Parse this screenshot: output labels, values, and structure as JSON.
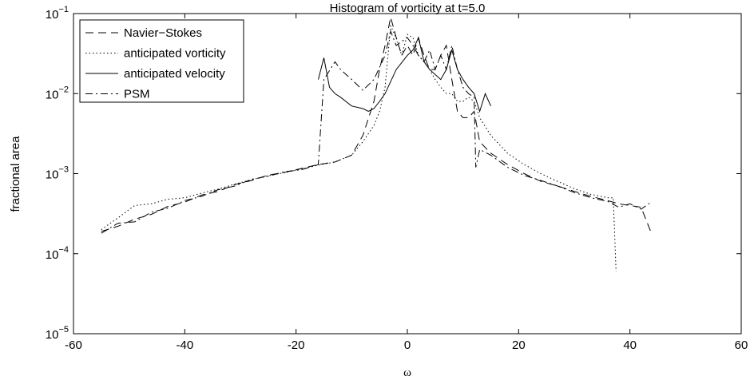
{
  "chart_data": {
    "type": "line",
    "title": "Histogram of vorticity at t=5.0",
    "x_label": "ω",
    "y_label": "fractional area",
    "y_scale": "log",
    "xlim": [
      -60,
      60
    ],
    "ylim": [
      1e-05,
      0.1
    ],
    "xticks": [
      -60,
      -40,
      -20,
      0,
      20,
      40,
      60
    ],
    "yticks": [
      {
        "value": 1e-05,
        "label": "10−5"
      },
      {
        "value": 0.0001,
        "label": "10−4"
      },
      {
        "value": 0.001,
        "label": "10−3"
      },
      {
        "value": 0.01,
        "label": "10−2"
      },
      {
        "value": 0.1,
        "label": "10−1"
      }
    ],
    "legend": "upper left",
    "series": [
      {
        "name": "Navier−Stokes",
        "color": "#000000",
        "linestyle": "dashed",
        "x": [
          -55,
          -52,
          -49,
          -46,
          -43,
          -40,
          -37,
          -34,
          -31,
          -28,
          -25,
          -22,
          -19,
          -16,
          -13,
          -10,
          -8,
          -6,
          -5,
          -4,
          -3,
          -2,
          -1,
          0,
          1,
          2,
          3,
          4,
          5,
          6,
          7,
          8,
          9,
          10,
          11,
          12,
          13,
          15,
          18,
          21,
          24,
          27,
          30,
          33,
          36,
          38,
          40,
          42,
          44
        ],
        "values": [
          0.00019,
          0.00022,
          0.00027,
          0.00031,
          0.00039,
          0.00044,
          0.00054,
          0.0006,
          0.00073,
          0.00082,
          0.00096,
          0.00104,
          0.00116,
          0.0013,
          0.0014,
          0.0017,
          0.003,
          0.008,
          0.02,
          0.04,
          0.09,
          0.05,
          0.03,
          0.04,
          0.03,
          0.05,
          0.03,
          0.02,
          0.02,
          0.03,
          0.04,
          0.015,
          0.006,
          0.005,
          0.005,
          0.006,
          0.0025,
          0.0018,
          0.0013,
          0.001,
          0.0008,
          0.0007,
          0.0006,
          0.00052,
          0.00046,
          0.00042,
          0.0004,
          0.00038,
          0.00017
        ]
      },
      {
        "name": "anticipated vorticity",
        "color": "#000000",
        "linestyle": "dotted",
        "x": [
          -55,
          -52,
          -49,
          -46,
          -43,
          -40,
          -37,
          -34,
          -31,
          -28,
          -25,
          -22,
          -19,
          -16,
          -13,
          -10,
          -8,
          -6,
          -5,
          -4,
          -3,
          -2,
          -1,
          0,
          1,
          2,
          3,
          4,
          5,
          6,
          7,
          8,
          9,
          10,
          11,
          12,
          13,
          15,
          18,
          21,
          24,
          27,
          30,
          33,
          36,
          37,
          37.5
        ],
        "values": [
          0.0002,
          0.00028,
          0.0004,
          0.00042,
          0.00048,
          0.0005,
          0.00057,
          0.00064,
          0.00074,
          0.00084,
          0.00094,
          0.00103,
          0.00114,
          0.00128,
          0.0014,
          0.0017,
          0.0025,
          0.004,
          0.006,
          0.012,
          0.07,
          0.05,
          0.03,
          0.055,
          0.05,
          0.03,
          0.025,
          0.02,
          0.015,
          0.012,
          0.01,
          0.01,
          0.008,
          0.008,
          0.009,
          0.008,
          0.005,
          0.003,
          0.0018,
          0.0013,
          0.001,
          0.0008,
          0.00065,
          0.00055,
          0.0005,
          0.0005,
          6e-05
        ]
      },
      {
        "name": "anticipated velocity",
        "color": "#000000",
        "linestyle": "solid",
        "x": [
          -16,
          -15,
          -14,
          -13,
          -12,
          -10,
          -8,
          -7,
          -6,
          -5,
          -4,
          -2,
          0,
          1,
          2,
          3,
          4,
          6,
          7,
          8,
          9,
          10,
          11,
          12,
          13,
          14,
          15
        ],
        "values": [
          0.015,
          0.028,
          0.012,
          0.01,
          0.009,
          0.007,
          0.0065,
          0.006,
          0.0065,
          0.008,
          0.01,
          0.02,
          0.03,
          0.035,
          0.05,
          0.025,
          0.02,
          0.015,
          0.02,
          0.035,
          0.02,
          0.015,
          0.012,
          0.01,
          0.006,
          0.01,
          0.007
        ]
      },
      {
        "name": "PSM",
        "color": "#000000",
        "linestyle": "dashdot",
        "x": [
          -55,
          -52,
          -49,
          -46,
          -43,
          -40,
          -37,
          -34,
          -31,
          -28,
          -25,
          -22,
          -19,
          -16,
          -15,
          -13,
          -12,
          -10,
          -8,
          -6,
          -4,
          -3,
          -2,
          -1,
          0,
          1,
          2,
          3,
          4,
          5,
          6,
          7,
          8,
          9,
          10,
          11,
          12,
          12.3,
          13,
          15,
          18,
          21,
          24,
          27,
          30,
          33,
          36,
          38,
          40,
          42,
          44
        ],
        "values": [
          0.00018,
          0.00024,
          0.00025,
          0.00033,
          0.00037,
          0.00046,
          0.00052,
          0.00063,
          0.0007,
          0.00085,
          0.00093,
          0.00106,
          0.00112,
          0.0013,
          0.015,
          0.025,
          0.02,
          0.015,
          0.011,
          0.015,
          0.03,
          0.06,
          0.04,
          0.045,
          0.05,
          0.04,
          0.03,
          0.025,
          0.035,
          0.02,
          0.03,
          0.02,
          0.04,
          0.02,
          0.012,
          0.01,
          0.009,
          0.0012,
          0.002,
          0.0017,
          0.0012,
          0.00095,
          0.00082,
          0.0007,
          0.00058,
          0.0005,
          0.00045,
          0.00038,
          0.00042,
          0.00036,
          0.00045
        ]
      }
    ]
  }
}
